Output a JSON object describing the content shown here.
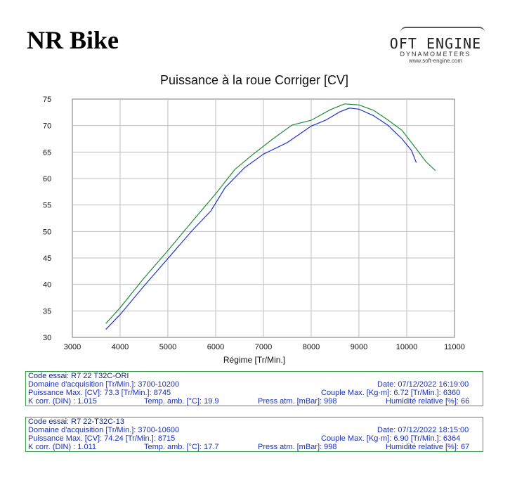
{
  "header": {
    "brand": "NR Bike",
    "logo_name": "OFT ENGINE",
    "logo_sub": "DYNAMOMETERS",
    "logo_url": "www.soft-engine.com"
  },
  "chart_data": {
    "type": "line",
    "title": "Puissance à la roue Corriger [CV]",
    "xlabel": "Régime [Tr/Min.]",
    "ylabel": "",
    "xlim": [
      3000,
      11000
    ],
    "ylim": [
      30,
      75
    ],
    "x_ticks": [
      3000,
      4000,
      5000,
      6000,
      7000,
      8000,
      9000,
      10000,
      11000
    ],
    "y_ticks": [
      30,
      35,
      40,
      45,
      50,
      55,
      60,
      65,
      70,
      75
    ],
    "grid": true,
    "series": [
      {
        "color": "#2233cc",
        "points": [
          [
            3700,
            31.5
          ],
          [
            4000,
            34.3
          ],
          [
            4500,
            39.7
          ],
          [
            5000,
            44.9
          ],
          [
            5500,
            50.1
          ],
          [
            5900,
            53.9
          ],
          [
            6200,
            58.3
          ],
          [
            6600,
            62.0
          ],
          [
            7000,
            64.6
          ],
          [
            7500,
            66.8
          ],
          [
            8000,
            69.9
          ],
          [
            8300,
            71.0
          ],
          [
            8600,
            72.6
          ],
          [
            8800,
            73.3
          ],
          [
            9000,
            73.1
          ],
          [
            9300,
            71.9
          ],
          [
            9600,
            70.1
          ],
          [
            9900,
            67.5
          ],
          [
            10100,
            65.3
          ],
          [
            10200,
            63.0
          ]
        ]
      },
      {
        "color": "#1f8a3a",
        "points": [
          [
            3700,
            32.6
          ],
          [
            4000,
            35.6
          ],
          [
            4500,
            41.2
          ],
          [
            5000,
            46.4
          ],
          [
            5500,
            51.8
          ],
          [
            6000,
            57.1
          ],
          [
            6400,
            61.7
          ],
          [
            6800,
            64.7
          ],
          [
            7200,
            67.5
          ],
          [
            7600,
            70.1
          ],
          [
            8000,
            71.0
          ],
          [
            8400,
            73.0
          ],
          [
            8700,
            74.1
          ],
          [
            9000,
            73.9
          ],
          [
            9300,
            72.9
          ],
          [
            9600,
            71.1
          ],
          [
            9900,
            69.1
          ],
          [
            10200,
            65.6
          ],
          [
            10400,
            63.2
          ],
          [
            10600,
            61.5
          ]
        ]
      }
    ]
  },
  "tests": [
    {
      "code": "Code essai: R7 22 T32C-ORI",
      "domain": "Domaine d'acquisition [Tr/Min.]: 3700-10200",
      "date": "Date: 07/12/2022   16:19:00",
      "power": "Puissance Max. [CV]: 73.3   [Tr/Min.]: 8745",
      "torque": "Couple Max. [Kg·m]: 6.72   [Tr/Min.]: 6360",
      "kcorr": "K corr. (DIN) : 1.015",
      "temp": "Temp. amb. [°C]: 19.9",
      "press": "Press atm. [mBar]: 998",
      "humidity": "Humidité relative [%]: 66"
    },
    {
      "code": "Code essai: R7 22-T32C-13",
      "domain": "Domaine d'acquisition [Tr/Min.]: 3700-10600",
      "date": "Date: 07/12/2022   18:15:00",
      "power": "Puissance Max. [CV]: 74.24   [Tr/Min.]: 8715",
      "torque": "Couple Max. [Kg·m]: 6.90   [Tr/Min.]: 6364",
      "kcorr": "K corr. (DIN) : 1.011",
      "temp": "Temp. amb. [°C]: 17.7",
      "press": "Press atm. [mBar]: 998",
      "humidity": "Humidité relative [%]: 67"
    }
  ]
}
